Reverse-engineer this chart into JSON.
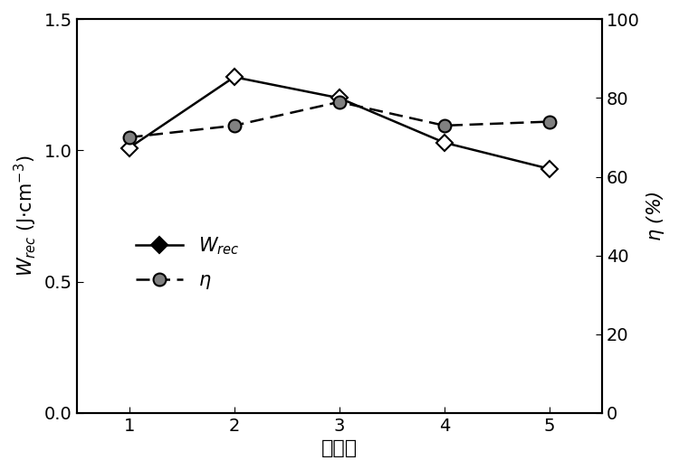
{
  "x": [
    1,
    2,
    3,
    4,
    5
  ],
  "w_rec": [
    1.01,
    1.28,
    1.2,
    1.03,
    0.93
  ],
  "eta": [
    70,
    73,
    79,
    73,
    74
  ],
  "left_ylim": [
    0,
    1.5
  ],
  "right_ylim": [
    0,
    100
  ],
  "left_yticks": [
    0.0,
    0.5,
    1.0,
    1.5
  ],
  "right_yticks": [
    0,
    20,
    40,
    60,
    80,
    100
  ],
  "xticks": [
    1,
    2,
    3,
    4,
    5
  ],
  "xlabel": "实施例",
  "left_ylabel": "$W_{rec}$ (J·cm$^{-3}$)",
  "right_ylabel": "$\\eta$ (%)",
  "legend_wrec": "$W_{rec}$",
  "legend_eta": "$\\eta$",
  "line_color": "#000000",
  "marker_face_white": "#ffffff",
  "marker_face_gray": "#808080",
  "bg_color": "#ffffff"
}
